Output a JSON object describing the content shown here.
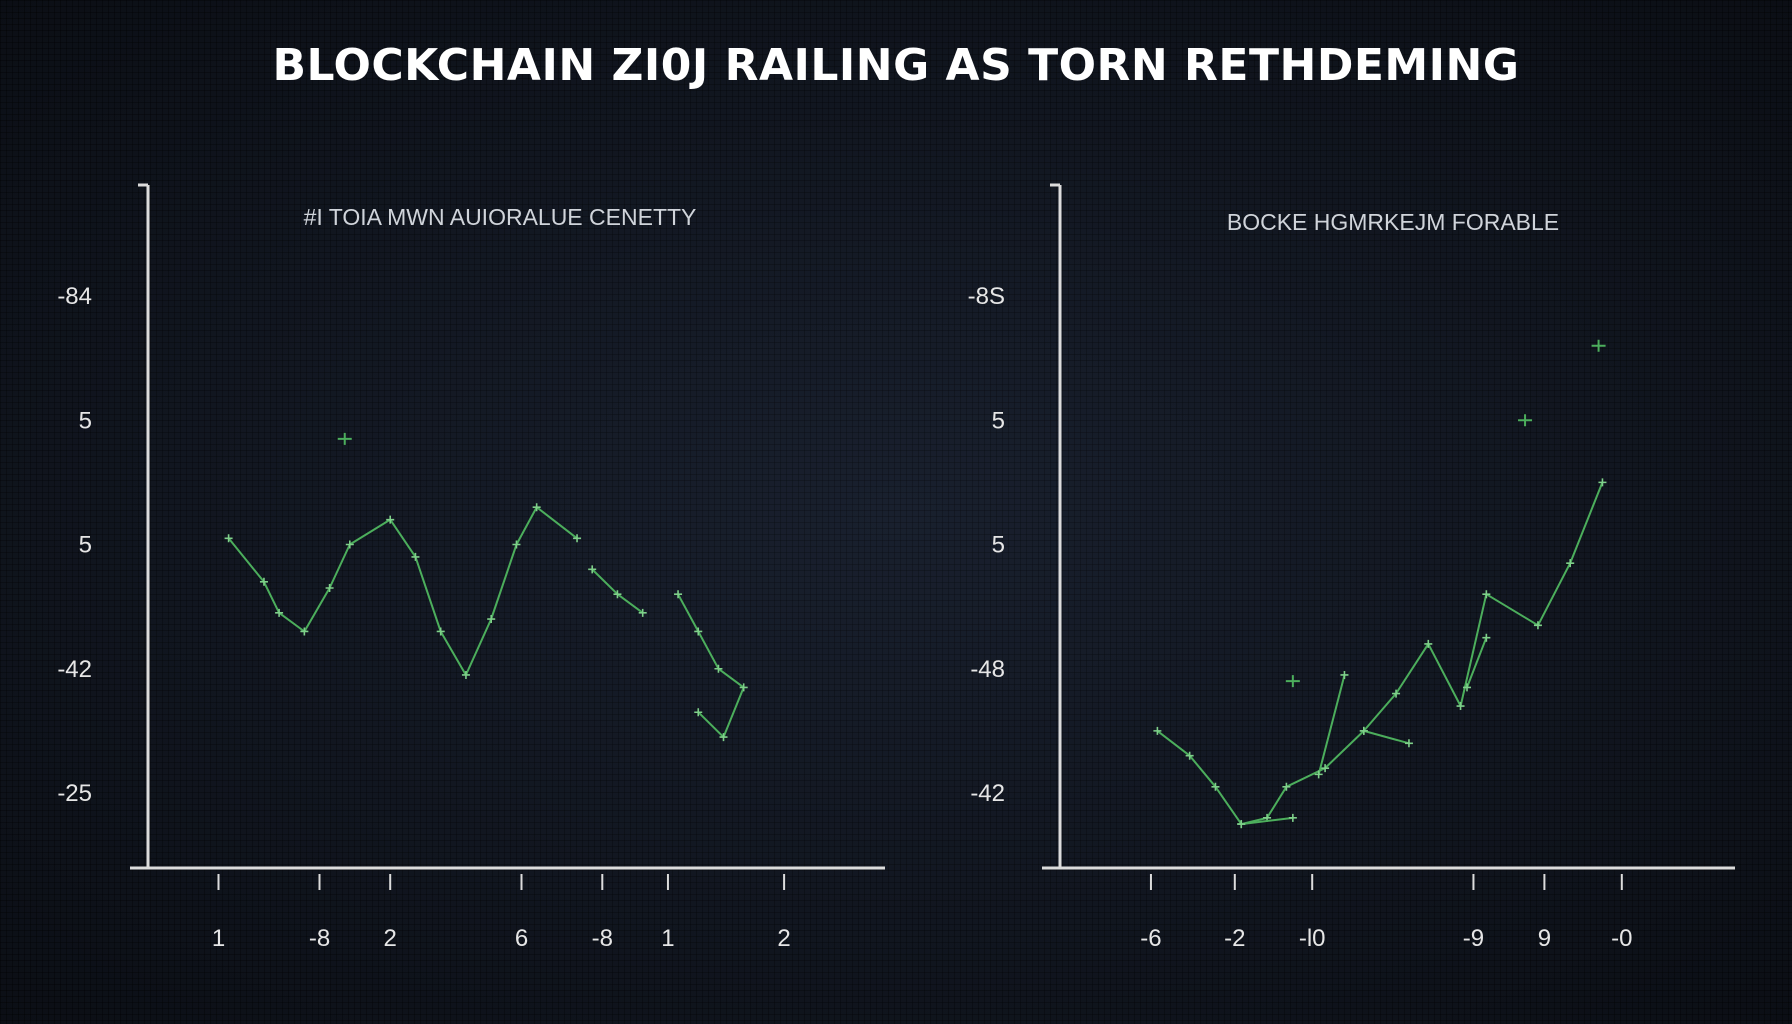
{
  "title": "BLOCKCHAIN ZI0J RAILING AS TORN RETHDEMING",
  "colors": {
    "background": "#141a26",
    "axis": "#dcdcdc",
    "line": "#4cae5c",
    "text": "#e6e6e6"
  },
  "chart_data": [
    {
      "type": "line",
      "title": "#I TOIA MWN AUIORALUE CENETTY",
      "y_tick_labels": [
        "-84",
        "5",
        "5",
        "-42",
        "-25"
      ],
      "x_tick_labels": [
        "1",
        "-8",
        "2",
        "6",
        "-8",
        "1",
        "2"
      ],
      "y_tick_positions": [
        1,
        2,
        3,
        4,
        5
      ],
      "x_tick_positions": [
        0.5,
        1.5,
        2.2,
        3.5,
        4.3,
        4.95,
        6.1
      ],
      "xlim": [
        0,
        7
      ],
      "ylim": [
        0,
        5.5
      ],
      "grid": false,
      "series": [
        {
          "points": [
            [
              0.6,
              3.05
            ],
            [
              0.95,
              2.7
            ],
            [
              1.1,
              2.45
            ],
            [
              1.35,
              2.3
            ],
            [
              1.6,
              2.65
            ],
            [
              1.8,
              3.0
            ],
            [
              2.2,
              3.2
            ],
            [
              2.45,
              2.9
            ],
            [
              2.7,
              2.3
            ],
            [
              2.95,
              1.95
            ],
            [
              3.2,
              2.4
            ],
            [
              3.45,
              3.0
            ],
            [
              3.65,
              3.3
            ],
            [
              4.05,
              3.05
            ]
          ]
        },
        {
          "points": [
            [
              4.2,
              2.8
            ],
            [
              4.45,
              2.6
            ],
            [
              4.7,
              2.45
            ]
          ]
        },
        {
          "points": [
            [
              5.05,
              2.6
            ],
            [
              5.25,
              2.3
            ],
            [
              5.45,
              2.0
            ],
            [
              5.7,
              1.85
            ],
            [
              5.5,
              1.45
            ],
            [
              5.25,
              1.65
            ]
          ]
        }
      ],
      "markers": [
        [
          1.75,
          3.85
        ]
      ]
    },
    {
      "type": "line",
      "title": "BOCKE HGMRKEJM FORABLE",
      "y_tick_labels": [
        "-8S",
        "5",
        "5",
        "-48",
        "-42"
      ],
      "x_tick_labels": [
        "-6",
        "-2",
        "-l0",
        "-9",
        "9",
        "-0"
      ],
      "y_tick_positions": [
        1,
        2,
        3,
        4,
        5
      ],
      "x_tick_positions": [
        0.55,
        1.2,
        1.8,
        3.05,
        3.6,
        4.2
      ],
      "xlim": [
        0,
        5
      ],
      "ylim": [
        0,
        5.5
      ],
      "grid": false,
      "series": [
        {
          "points": [
            [
              0.6,
              1.5
            ],
            [
              0.85,
              1.3
            ],
            [
              1.05,
              1.05
            ],
            [
              1.25,
              0.75
            ],
            [
              1.45,
              0.8
            ],
            [
              1.6,
              1.05
            ],
            [
              1.9,
              1.2
            ],
            [
              2.2,
              1.5
            ],
            [
              2.45,
              1.8
            ],
            [
              2.7,
              2.2
            ],
            [
              2.95,
              1.7
            ],
            [
              3.15,
              2.6
            ],
            [
              3.55,
              2.35
            ],
            [
              3.8,
              2.85
            ],
            [
              4.05,
              3.5
            ]
          ]
        },
        {
          "points": [
            [
              1.25,
              0.75
            ],
            [
              1.65,
              0.8
            ]
          ]
        },
        {
          "points": [
            [
              1.85,
              1.15
            ],
            [
              2.05,
              1.95
            ]
          ]
        },
        {
          "points": [
            [
              2.2,
              1.5
            ],
            [
              2.55,
              1.4
            ]
          ]
        },
        {
          "points": [
            [
              3.0,
              1.85
            ],
            [
              3.15,
              2.25
            ]
          ]
        }
      ],
      "markers": [
        [
          1.65,
          1.9
        ],
        [
          3.45,
          4.0
        ],
        [
          4.02,
          4.6
        ]
      ]
    }
  ]
}
